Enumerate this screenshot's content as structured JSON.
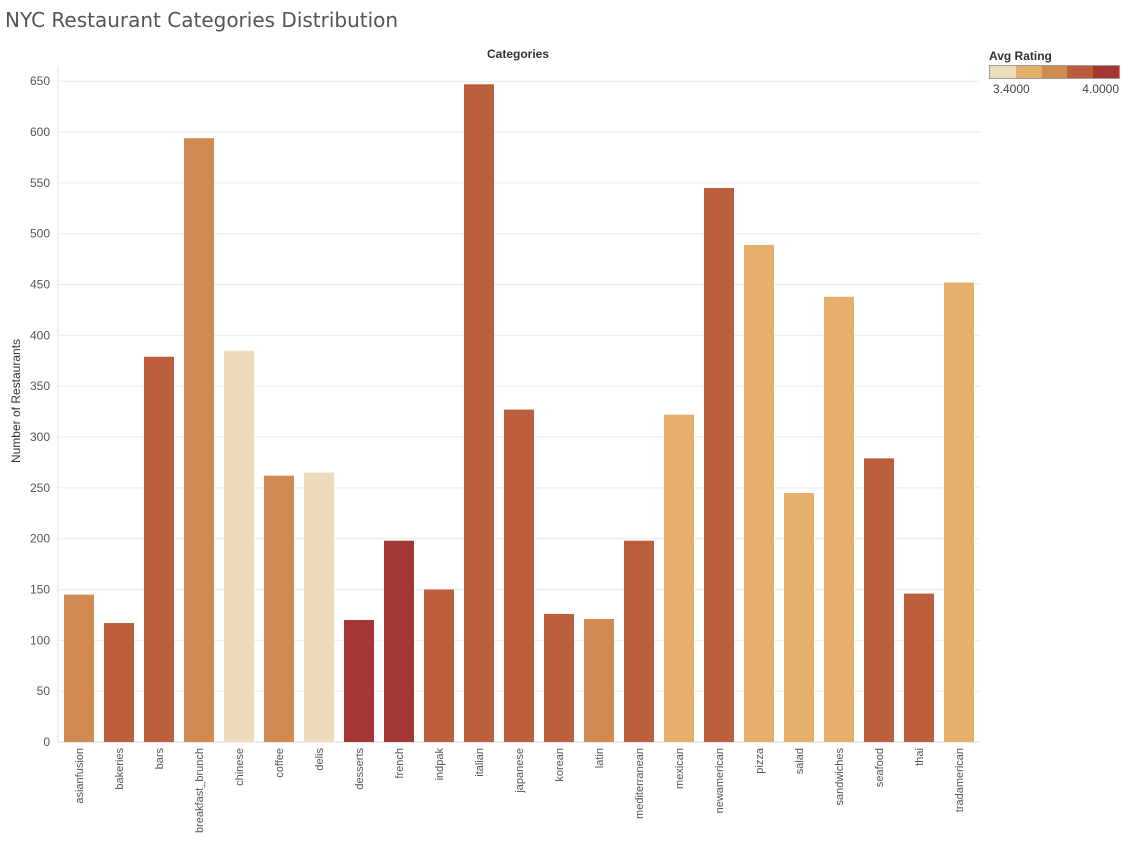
{
  "title": "NYC Restaurant Categories Distribution",
  "legend": {
    "title": "Avg Rating",
    "min_label": "3.4000",
    "max_label": "4.0000",
    "colors": [
      "#ecdcbd",
      "#e6b06c",
      "#d08a52",
      "#bc5d3b",
      "#a43733"
    ]
  },
  "chart_data": {
    "type": "bar",
    "title": "NYC Restaurant Categories Distribution",
    "xlabel": "Categories",
    "ylabel": "Number of Restaurants",
    "ylim": [
      0,
      665
    ],
    "yticks": [
      0,
      50,
      100,
      150,
      200,
      250,
      300,
      350,
      400,
      450,
      500,
      550,
      600,
      650
    ],
    "grid": true,
    "legend_position": "top-right",
    "categories": [
      "asianfusion",
      "bakeries",
      "bars",
      "breakfast_brunch",
      "chinese",
      "coffee",
      "delis",
      "desserts",
      "french",
      "indpak",
      "italian",
      "japanese",
      "korean",
      "latin",
      "mediterranean",
      "mexican",
      "newamerican",
      "pizza",
      "salad",
      "sandwiches",
      "seafood",
      "thai",
      "tradamerican"
    ],
    "values": [
      145,
      117,
      379,
      594,
      385,
      262,
      265,
      120,
      198,
      150,
      647,
      327,
      126,
      121,
      198,
      322,
      545,
      489,
      245,
      438,
      279,
      146,
      452
    ],
    "colors": [
      "#d08a52",
      "#bc5d3b",
      "#bc5d3b",
      "#d08a52",
      "#ecdcbd",
      "#d08a52",
      "#ecdcbd",
      "#a43733",
      "#a43733",
      "#bc5d3b",
      "#bc5d3b",
      "#bc5d3b",
      "#bc5d3b",
      "#d08a52",
      "#bc5d3b",
      "#e6b06c",
      "#bc5d3b",
      "#e6b06c",
      "#e6b06c",
      "#e6b06c",
      "#bc5d3b",
      "#bc5d3b",
      "#e6b06c"
    ]
  }
}
